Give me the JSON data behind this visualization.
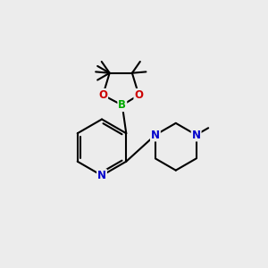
{
  "bg_color": "#ececec",
  "bond_color": "#000000",
  "N_color": "#0000cc",
  "O_color": "#cc0000",
  "B_color": "#00aa00",
  "line_width": 1.5,
  "font_size_atom": 8.5,
  "font_size_methyl": 7.5,
  "xlim": [
    0,
    10
  ],
  "ylim": [
    0,
    10
  ]
}
